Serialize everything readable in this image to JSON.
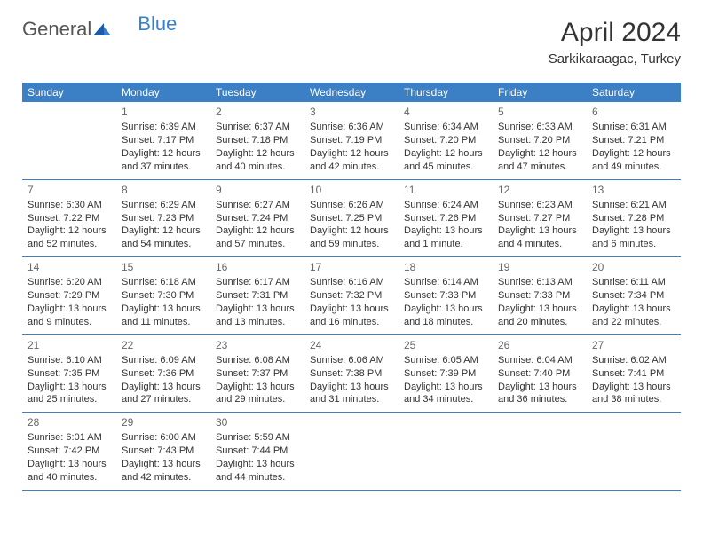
{
  "logo": {
    "general": "General",
    "blue": "Blue"
  },
  "title": "April 2024",
  "location": "Sarkikaraagac, Turkey",
  "colors": {
    "header_bg": "#3b7fc4",
    "header_text": "#ffffff",
    "border": "#3b7fc4",
    "text": "#333333",
    "daynum": "#666666"
  },
  "dayNames": [
    "Sunday",
    "Monday",
    "Tuesday",
    "Wednesday",
    "Thursday",
    "Friday",
    "Saturday"
  ],
  "weeks": [
    [
      null,
      {
        "n": "1",
        "sr": "6:39 AM",
        "ss": "7:17 PM",
        "dl": "12 hours and 37 minutes."
      },
      {
        "n": "2",
        "sr": "6:37 AM",
        "ss": "7:18 PM",
        "dl": "12 hours and 40 minutes."
      },
      {
        "n": "3",
        "sr": "6:36 AM",
        "ss": "7:19 PM",
        "dl": "12 hours and 42 minutes."
      },
      {
        "n": "4",
        "sr": "6:34 AM",
        "ss": "7:20 PM",
        "dl": "12 hours and 45 minutes."
      },
      {
        "n": "5",
        "sr": "6:33 AM",
        "ss": "7:20 PM",
        "dl": "12 hours and 47 minutes."
      },
      {
        "n": "6",
        "sr": "6:31 AM",
        "ss": "7:21 PM",
        "dl": "12 hours and 49 minutes."
      }
    ],
    [
      {
        "n": "7",
        "sr": "6:30 AM",
        "ss": "7:22 PM",
        "dl": "12 hours and 52 minutes."
      },
      {
        "n": "8",
        "sr": "6:29 AM",
        "ss": "7:23 PM",
        "dl": "12 hours and 54 minutes."
      },
      {
        "n": "9",
        "sr": "6:27 AM",
        "ss": "7:24 PM",
        "dl": "12 hours and 57 minutes."
      },
      {
        "n": "10",
        "sr": "6:26 AM",
        "ss": "7:25 PM",
        "dl": "12 hours and 59 minutes."
      },
      {
        "n": "11",
        "sr": "6:24 AM",
        "ss": "7:26 PM",
        "dl": "13 hours and 1 minute."
      },
      {
        "n": "12",
        "sr": "6:23 AM",
        "ss": "7:27 PM",
        "dl": "13 hours and 4 minutes."
      },
      {
        "n": "13",
        "sr": "6:21 AM",
        "ss": "7:28 PM",
        "dl": "13 hours and 6 minutes."
      }
    ],
    [
      {
        "n": "14",
        "sr": "6:20 AM",
        "ss": "7:29 PM",
        "dl": "13 hours and 9 minutes."
      },
      {
        "n": "15",
        "sr": "6:18 AM",
        "ss": "7:30 PM",
        "dl": "13 hours and 11 minutes."
      },
      {
        "n": "16",
        "sr": "6:17 AM",
        "ss": "7:31 PM",
        "dl": "13 hours and 13 minutes."
      },
      {
        "n": "17",
        "sr": "6:16 AM",
        "ss": "7:32 PM",
        "dl": "13 hours and 16 minutes."
      },
      {
        "n": "18",
        "sr": "6:14 AM",
        "ss": "7:33 PM",
        "dl": "13 hours and 18 minutes."
      },
      {
        "n": "19",
        "sr": "6:13 AM",
        "ss": "7:33 PM",
        "dl": "13 hours and 20 minutes."
      },
      {
        "n": "20",
        "sr": "6:11 AM",
        "ss": "7:34 PM",
        "dl": "13 hours and 22 minutes."
      }
    ],
    [
      {
        "n": "21",
        "sr": "6:10 AM",
        "ss": "7:35 PM",
        "dl": "13 hours and 25 minutes."
      },
      {
        "n": "22",
        "sr": "6:09 AM",
        "ss": "7:36 PM",
        "dl": "13 hours and 27 minutes."
      },
      {
        "n": "23",
        "sr": "6:08 AM",
        "ss": "7:37 PM",
        "dl": "13 hours and 29 minutes."
      },
      {
        "n": "24",
        "sr": "6:06 AM",
        "ss": "7:38 PM",
        "dl": "13 hours and 31 minutes."
      },
      {
        "n": "25",
        "sr": "6:05 AM",
        "ss": "7:39 PM",
        "dl": "13 hours and 34 minutes."
      },
      {
        "n": "26",
        "sr": "6:04 AM",
        "ss": "7:40 PM",
        "dl": "13 hours and 36 minutes."
      },
      {
        "n": "27",
        "sr": "6:02 AM",
        "ss": "7:41 PM",
        "dl": "13 hours and 38 minutes."
      }
    ],
    [
      {
        "n": "28",
        "sr": "6:01 AM",
        "ss": "7:42 PM",
        "dl": "13 hours and 40 minutes."
      },
      {
        "n": "29",
        "sr": "6:00 AM",
        "ss": "7:43 PM",
        "dl": "13 hours and 42 minutes."
      },
      {
        "n": "30",
        "sr": "5:59 AM",
        "ss": "7:44 PM",
        "dl": "13 hours and 44 minutes."
      },
      null,
      null,
      null,
      null
    ]
  ]
}
